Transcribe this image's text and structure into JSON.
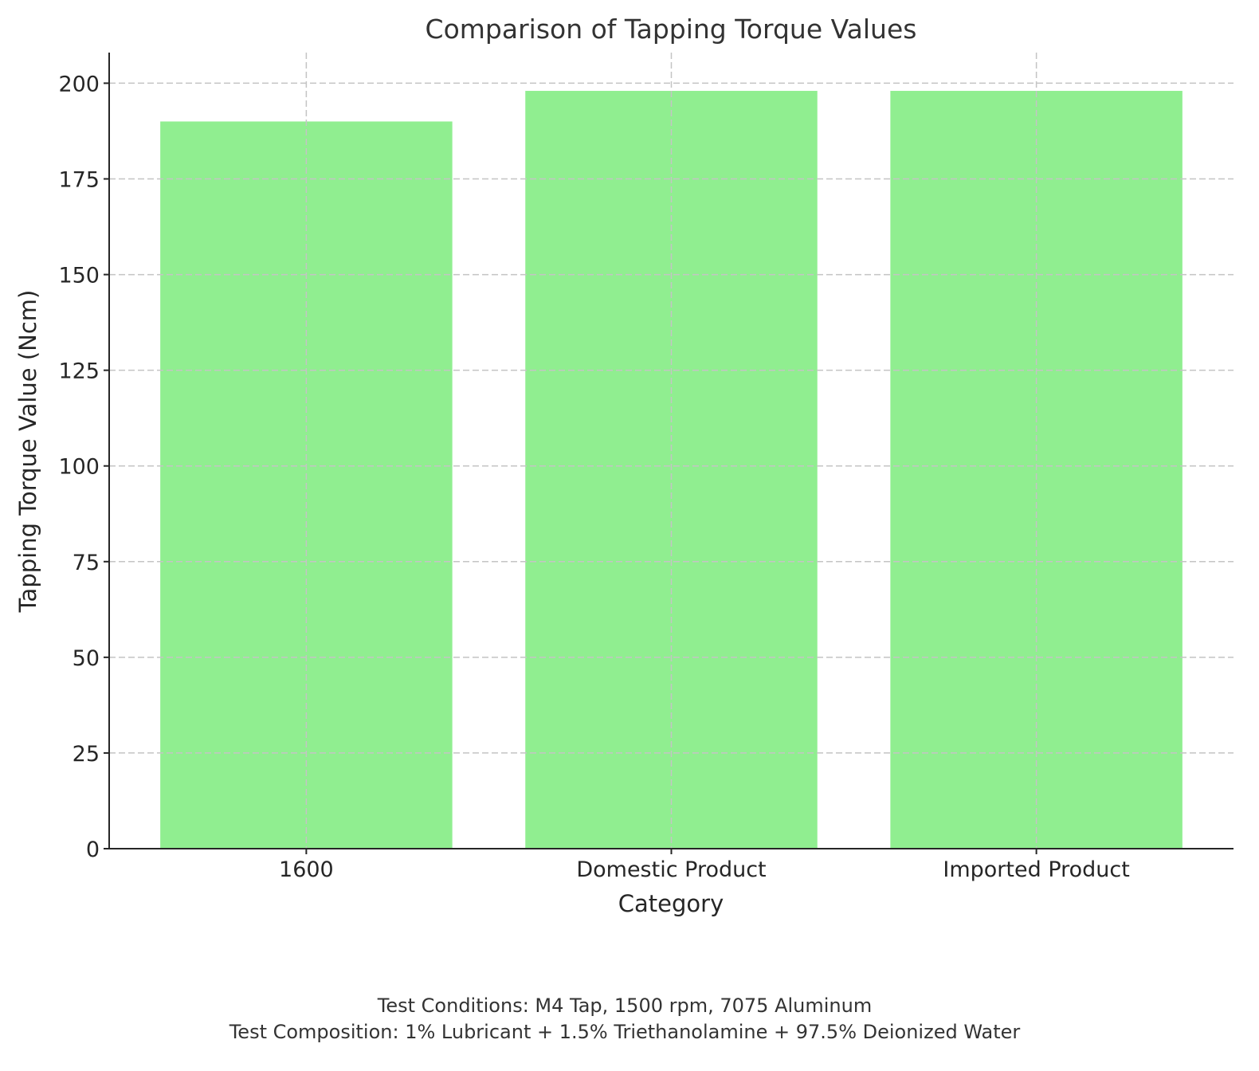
{
  "chart_data": {
    "type": "bar",
    "title": "Comparison of Tapping Torque Values",
    "xlabel": "Category",
    "ylabel": "Tapping Torque Value (Ncm)",
    "categories": [
      "1600",
      "Domestic Product",
      "Imported Product"
    ],
    "values": [
      190,
      198,
      198
    ],
    "ylim": [
      0,
      208
    ],
    "yticks": [
      0,
      25,
      50,
      75,
      100,
      125,
      150,
      175,
      200
    ],
    "grid": true,
    "bar_color": "#90ee90",
    "footnotes": [
      "Test Conditions: M4 Tap, 1500 rpm, 7075 Aluminum",
      "Test Composition: 1% Lubricant + 1.5% Triethanolamine + 97.5% Deionized Water"
    ]
  }
}
